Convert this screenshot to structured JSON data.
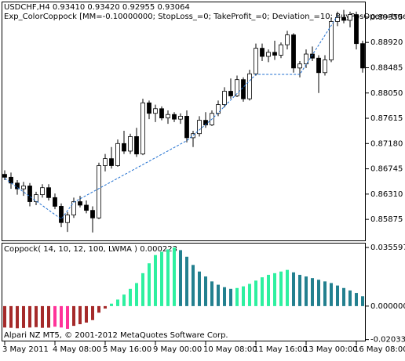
{
  "chart_data": [
    {
      "type": "candlestick",
      "title": "USDCHF,H4  0.93410 0.93420 0.92955 0.93064",
      "subtitle": "Exp_ColorCoppock [MM=-0.10000000; StopLoss_=0; TakeProfit_=0; Deviation_=10; BuyPosOpen=true; Sell",
      "categories": [
        "3 May 2011",
        null,
        null,
        null,
        null,
        null,
        null,
        null,
        "4 May 08:00",
        null,
        null,
        null,
        null,
        null,
        null,
        null,
        "5 May 16:00",
        null,
        null,
        null,
        null,
        null,
        null,
        null,
        "9 May 00:00",
        null,
        null,
        null,
        null,
        null,
        null,
        null,
        "10 May 08:00",
        null,
        null,
        null,
        null,
        null,
        null,
        null,
        "11 May 16:00",
        null,
        null,
        null,
        null,
        null,
        null,
        null,
        "13 May 00:00",
        null,
        null,
        null,
        null,
        null,
        null,
        null,
        "16 May 08:00",
        null
      ],
      "open": [
        0.8665,
        0.866,
        0.865,
        0.864,
        0.8645,
        0.8618,
        0.863,
        0.8642,
        0.8625,
        0.861,
        0.8582,
        0.8595,
        0.8618,
        0.8612,
        0.8603,
        0.859,
        0.868,
        0.8692,
        0.868,
        0.8718,
        0.8705,
        0.873,
        0.87,
        0.8788,
        0.877,
        0.8778,
        0.8762,
        0.8768,
        0.876,
        0.8765,
        0.8728,
        0.8735,
        0.8758,
        0.875,
        0.877,
        0.8785,
        0.8808,
        0.88,
        0.8828,
        0.8795,
        0.8838,
        0.8882,
        0.8868,
        0.8875,
        0.887,
        0.8888,
        0.8905,
        0.8848,
        0.8855,
        0.8872,
        0.8865,
        0.884,
        0.8862,
        0.8928,
        0.8935,
        0.893,
        0.894,
        0.889
      ],
      "high": [
        0.8672,
        0.8668,
        0.8655,
        0.8652,
        0.865,
        0.8635,
        0.8648,
        0.8648,
        0.8632,
        0.8615,
        0.86,
        0.8625,
        0.8628,
        0.862,
        0.861,
        0.8685,
        0.87,
        0.8712,
        0.8725,
        0.874,
        0.8735,
        0.8745,
        0.8795,
        0.8792,
        0.8785,
        0.8782,
        0.8775,
        0.8772,
        0.877,
        0.8775,
        0.874,
        0.8765,
        0.8772,
        0.8775,
        0.8792,
        0.8815,
        0.883,
        0.8835,
        0.8832,
        0.8845,
        0.889,
        0.889,
        0.888,
        0.8895,
        0.8892,
        0.8912,
        0.8908,
        0.886,
        0.888,
        0.8885,
        0.887,
        0.887,
        0.8935,
        0.8945,
        0.8948,
        0.8945,
        0.8945,
        0.8895
      ],
      "low": [
        0.8655,
        0.864,
        0.863,
        0.8628,
        0.861,
        0.8612,
        0.8625,
        0.862,
        0.8605,
        0.8574,
        0.8566,
        0.859,
        0.8608,
        0.8598,
        0.8565,
        0.8588,
        0.867,
        0.8675,
        0.8678,
        0.87,
        0.87,
        0.8695,
        0.8698,
        0.876,
        0.8755,
        0.8758,
        0.8752,
        0.8755,
        0.8752,
        0.872,
        0.8712,
        0.873,
        0.8745,
        0.8748,
        0.8765,
        0.878,
        0.8795,
        0.8798,
        0.879,
        0.8792,
        0.8835,
        0.886,
        0.8858,
        0.8862,
        0.8865,
        0.888,
        0.884,
        0.8832,
        0.8848,
        0.886,
        0.8805,
        0.8835,
        0.8858,
        0.892,
        0.8925,
        0.8918,
        0.888,
        0.884
      ],
      "close": [
        0.866,
        0.865,
        0.864,
        0.8645,
        0.8618,
        0.863,
        0.8642,
        0.8625,
        0.861,
        0.8582,
        0.8595,
        0.8618,
        0.8612,
        0.8603,
        0.859,
        0.868,
        0.8692,
        0.868,
        0.8718,
        0.8705,
        0.873,
        0.87,
        0.8788,
        0.877,
        0.8778,
        0.8762,
        0.8768,
        0.876,
        0.8765,
        0.8728,
        0.8735,
        0.8758,
        0.875,
        0.877,
        0.8785,
        0.8808,
        0.88,
        0.8828,
        0.8795,
        0.8838,
        0.8882,
        0.8868,
        0.8875,
        0.887,
        0.8888,
        0.8905,
        0.8848,
        0.8855,
        0.8872,
        0.8865,
        0.884,
        0.8862,
        0.8928,
        0.8935,
        0.893,
        0.894,
        0.889,
        0.8848
      ],
      "up_color": "#ffffff",
      "down_color": "#000000",
      "edge_color": "#000000",
      "trail": {
        "x": [
          0,
          9,
          11,
          29,
          33,
          40,
          47,
          53
        ],
        "values": [
          0.8658,
          0.8588,
          0.8617,
          0.8723,
          0.876,
          0.8837,
          0.8837,
          0.8938
        ],
        "color": "#1f6fd0"
      },
      "ylim": [
        0.8554,
        0.8961
      ],
      "yticks": [
        {
          "value": 0.89355,
          "label": "0.89355"
        },
        {
          "value": 0.8892,
          "label": "0.88920"
        },
        {
          "value": 0.88485,
          "label": "0.88485"
        },
        {
          "value": 0.8805,
          "label": "0.88050"
        },
        {
          "value": 0.87615,
          "label": "0.87615"
        },
        {
          "value": 0.8718,
          "label": "0.87180"
        },
        {
          "value": 0.86745,
          "label": "0.86745"
        },
        {
          "value": 0.8631,
          "label": "0.86310"
        },
        {
          "value": 0.85875,
          "label": "0.85875"
        }
      ]
    },
    {
      "type": "bar",
      "title": "Coppock( 14, 10, 12, 100, LWMA ) 0.000223",
      "footer": "Alpari NZ MT5, © 2001-2012 MetaQuotes Software Corp.",
      "values": [
        -0.013,
        -0.0132,
        -0.0135,
        -0.0133,
        -0.013,
        -0.0128,
        -0.0132,
        -0.0131,
        -0.0125,
        -0.013,
        -0.0138,
        -0.012,
        -0.011,
        -0.01,
        -0.0085,
        -0.004,
        -0.0015,
        0.0015,
        0.004,
        0.007,
        0.0105,
        0.014,
        0.02,
        0.026,
        0.031,
        0.033,
        0.0345,
        0.0356,
        0.034,
        0.03,
        0.025,
        0.021,
        0.018,
        0.015,
        0.013,
        0.0115,
        0.0105,
        0.011,
        0.012,
        0.0135,
        0.0155,
        0.0175,
        0.019,
        0.02,
        0.021,
        0.022,
        0.0205,
        0.019,
        0.018,
        0.017,
        0.016,
        0.015,
        0.014,
        0.0125,
        0.011,
        0.0095,
        0.008,
        0.006
      ],
      "colors": [
        "#a52a2a",
        "#a52a2a",
        "#a52a2a",
        "#a52a2a",
        "#a52a2a",
        "#a52a2a",
        "#a52a2a",
        "#a52a2a",
        "#ff3399",
        "#ff3399",
        "#ff3399",
        "#a52a2a",
        "#a52a2a",
        "#a52a2a",
        "#a52a2a",
        "#a52a2a",
        "#a52a2a",
        "#2ef0a0",
        "#2ef0a0",
        "#2ef0a0",
        "#2ef0a0",
        "#2ef0a0",
        "#2ef0a0",
        "#2ef0a0",
        "#2ef0a0",
        "#2ef0a0",
        "#2ef0a0",
        "#2ef0a0",
        "#23808f",
        "#23808f",
        "#23808f",
        "#23808f",
        "#23808f",
        "#23808f",
        "#23808f",
        "#23808f",
        "#23808f",
        "#2ef0a0",
        "#2ef0a0",
        "#2ef0a0",
        "#2ef0a0",
        "#2ef0a0",
        "#2ef0a0",
        "#2ef0a0",
        "#2ef0a0",
        "#2ef0a0",
        "#23808f",
        "#23808f",
        "#23808f",
        "#23808f",
        "#23808f",
        "#23808f",
        "#23808f",
        "#23808f",
        "#23808f",
        "#23808f",
        "#23808f",
        "#23808f"
      ],
      "ylim": [
        -0.0205,
        0.038
      ],
      "yticks": [
        0.035597,
        {
          "value": 0,
          "label": "0.000000"
        },
        -0.020333
      ]
    }
  ]
}
